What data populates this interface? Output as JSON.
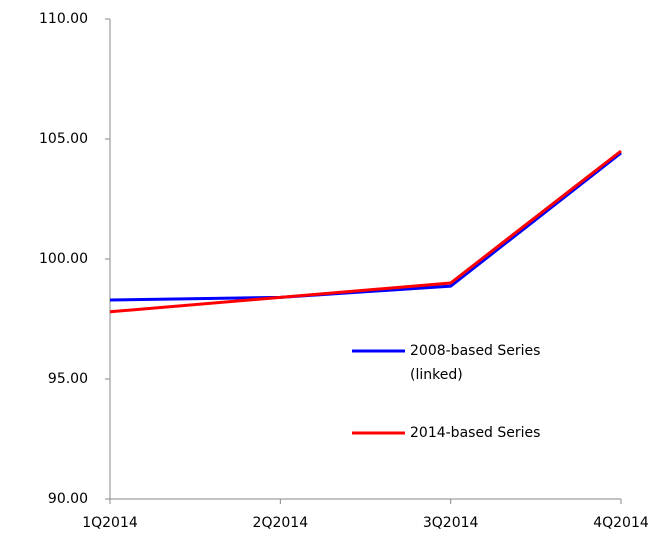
{
  "chart_data": {
    "type": "line",
    "categories": [
      "1Q2014",
      "2Q2014",
      "3Q2014",
      "4Q2014"
    ],
    "series": [
      {
        "name": "2008-based Series (linked)",
        "color": "#0000ff",
        "values": [
          98.29,
          98.4,
          98.87,
          104.42
        ]
      },
      {
        "name": "2014-based Series",
        "color": "#ff0000",
        "values": [
          97.8,
          98.4,
          99.0,
          104.5
        ]
      }
    ],
    "ylim": [
      90,
      110
    ],
    "yticks": [
      {
        "value": 90,
        "label": "90.00"
      },
      {
        "value": 95,
        "label": "95.00"
      },
      {
        "value": 100,
        "label": "100.00"
      },
      {
        "value": 105,
        "label": "105.00"
      },
      {
        "value": 110,
        "label": "110.00"
      }
    ],
    "grid": false
  }
}
